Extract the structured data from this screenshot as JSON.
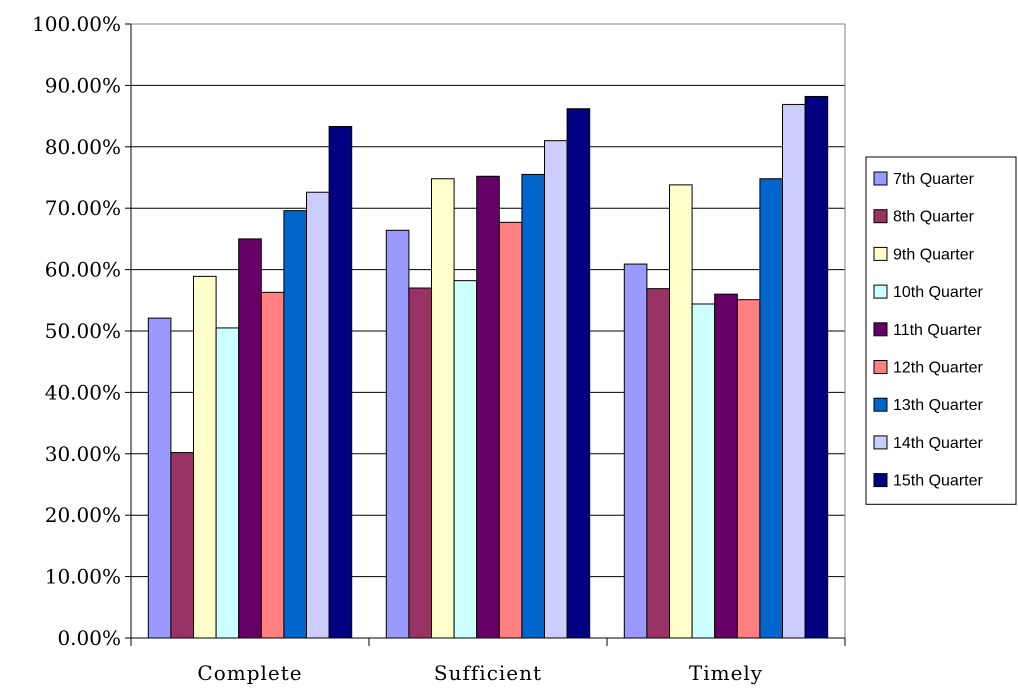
{
  "chart_data": {
    "type": "bar",
    "categories": [
      "Complete",
      "Sufficient",
      "Timely"
    ],
    "series": [
      {
        "name": "7th Quarter",
        "color": "#9999FF",
        "values": [
          0.521,
          0.664,
          0.609
        ]
      },
      {
        "name": "8th Quarter",
        "color": "#993366",
        "values": [
          0.302,
          0.57,
          0.569
        ]
      },
      {
        "name": "9th Quarter",
        "color": "#FFFFCC",
        "values": [
          0.589,
          0.748,
          0.738
        ]
      },
      {
        "name": "10th Quarter",
        "color": "#CCFFFF",
        "values": [
          0.505,
          0.582,
          0.544
        ]
      },
      {
        "name": "11th Quarter",
        "color": "#660066",
        "values": [
          0.65,
          0.752,
          0.56
        ]
      },
      {
        "name": "12th Quarter",
        "color": "#FF8080",
        "values": [
          0.563,
          0.677,
          0.551
        ]
      },
      {
        "name": "13th Quarter",
        "color": "#0066CC",
        "values": [
          0.696,
          0.755,
          0.748
        ]
      },
      {
        "name": "14th Quarter",
        "color": "#CCCCFF",
        "values": [
          0.726,
          0.81,
          0.869
        ]
      },
      {
        "name": "15th Quarter",
        "color": "#000080",
        "values": [
          0.833,
          0.862,
          0.882
        ]
      }
    ],
    "yticks": [
      "0.00%",
      "10.00%",
      "20.00%",
      "30.00%",
      "40.00%",
      "50.00%",
      "60.00%",
      "70.00%",
      "80.00%",
      "90.00%",
      "100.00%"
    ],
    "ylim": [
      0,
      1
    ],
    "title": "",
    "xlabel": "",
    "ylabel": "",
    "grid": true,
    "legend": "right"
  }
}
